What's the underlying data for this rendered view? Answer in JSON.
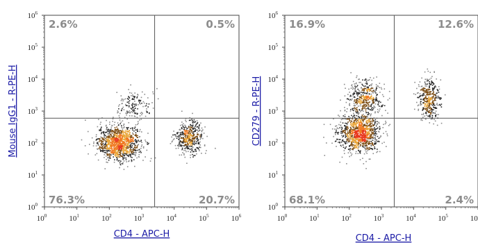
{
  "chart_data": [
    {
      "type": "scatter",
      "xlabel": "CD4 - APC-H",
      "ylabel": "Mouse IgG1 - R-PE-H",
      "x_scale": "log",
      "y_scale": "log",
      "xlim": [
        1,
        1000000
      ],
      "ylim": [
        1,
        1000000
      ],
      "x_ticks": [
        "10",
        "10",
        "10",
        "10",
        "10",
        "10",
        "10"
      ],
      "x_tick_exponents": [
        "0",
        "1",
        "2",
        "3",
        "4",
        "5",
        "6"
      ],
      "y_ticks": [
        "10",
        "10",
        "10",
        "10",
        "10",
        "10",
        "10"
      ],
      "y_tick_exponents": [
        "0",
        "1",
        "2",
        "3",
        "4",
        "5",
        "6"
      ],
      "quadrant_gate": {
        "x": 2500,
        "y": 600
      },
      "quadrants": {
        "upper_left": "2.6%",
        "upper_right": "0.5%",
        "lower_left": "76.3%",
        "lower_right": "20.7%"
      },
      "populations": [
        {
          "x_center": 200,
          "y_center": 100,
          "sx": 0.33,
          "sy": 0.27,
          "n": 1100
        },
        {
          "x_center": 30000,
          "y_center": 150,
          "sx": 0.22,
          "sy": 0.25,
          "n": 420
        },
        {
          "x_center": 600,
          "y_center": 1300,
          "sx": 0.28,
          "sy": 0.3,
          "n": 160
        }
      ]
    },
    {
      "type": "scatter",
      "xlabel": "CD4 - APC-H",
      "ylabel": "CD279 - R-PE-H",
      "x_scale": "log",
      "y_scale": "log",
      "xlim": [
        1,
        1000000
      ],
      "ylim": [
        1,
        1000000
      ],
      "x_ticks": [
        "10",
        "10",
        "10",
        "10",
        "10",
        "10",
        "10"
      ],
      "x_tick_exponents": [
        "0",
        "1",
        "2",
        "3",
        "4",
        "5",
        "6"
      ],
      "y_ticks": [
        "10",
        "10",
        "10",
        "10",
        "10",
        "10",
        "10"
      ],
      "y_tick_exponents": [
        "0",
        "1",
        "2",
        "3",
        "4",
        "5",
        "6"
      ],
      "quadrant_gate": {
        "x": 2500,
        "y": 600
      },
      "quadrants": {
        "upper_left": "16.9%",
        "upper_right": "12.6%",
        "lower_left": "68.1%",
        "lower_right": "2.4%"
      },
      "populations": [
        {
          "x_center": 200,
          "y_center": 200,
          "sx": 0.33,
          "sy": 0.3,
          "n": 1000
        },
        {
          "x_center": 300,
          "y_center": 2500,
          "sx": 0.28,
          "sy": 0.3,
          "n": 420
        },
        {
          "x_center": 30000,
          "y_center": 2500,
          "sx": 0.17,
          "sy": 0.33,
          "n": 380
        }
      ]
    }
  ]
}
